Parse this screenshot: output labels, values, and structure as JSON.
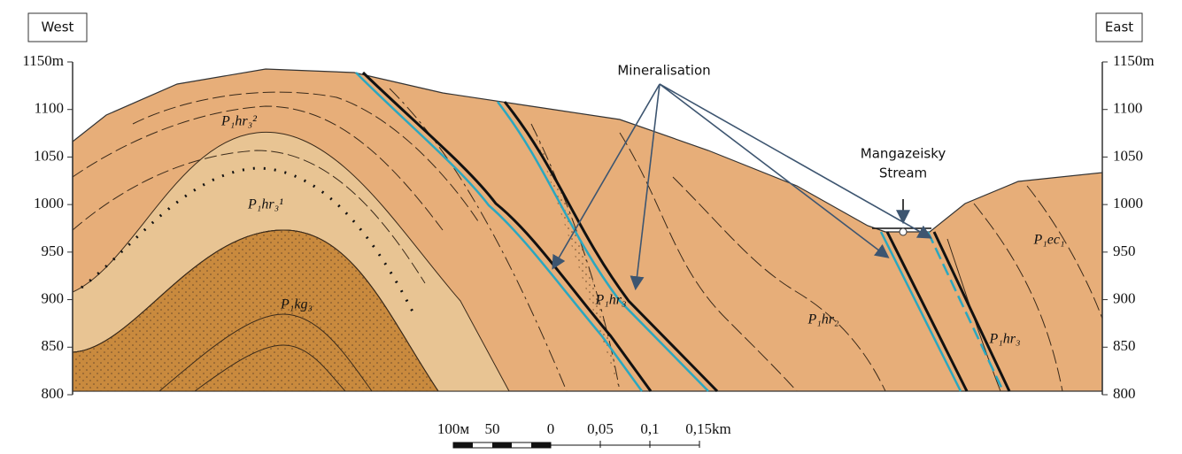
{
  "header": {
    "west": "West",
    "east": "East"
  },
  "left_axis": {
    "labels": [
      "1150m",
      "1100",
      "1050",
      "1000",
      "950",
      "900",
      "850",
      "800"
    ]
  },
  "right_axis": {
    "labels": [
      "1150m",
      "1100",
      "1050",
      "1000",
      "950",
      "900",
      "850",
      "800"
    ]
  },
  "annotations": {
    "mineralisation": "Mineralisation",
    "stream": [
      "Mangazeisky",
      "Stream"
    ]
  },
  "units": [
    "P₁hr₃²",
    "P₁hr₃¹",
    "P₁kg₃",
    "P₁hr₃",
    "P₁hr₂",
    "P₁hr₃",
    "P₁ec₁"
  ],
  "scale": [
    "100м",
    "50",
    "0",
    "0,05",
    "0,1",
    "0,15km"
  ]
}
